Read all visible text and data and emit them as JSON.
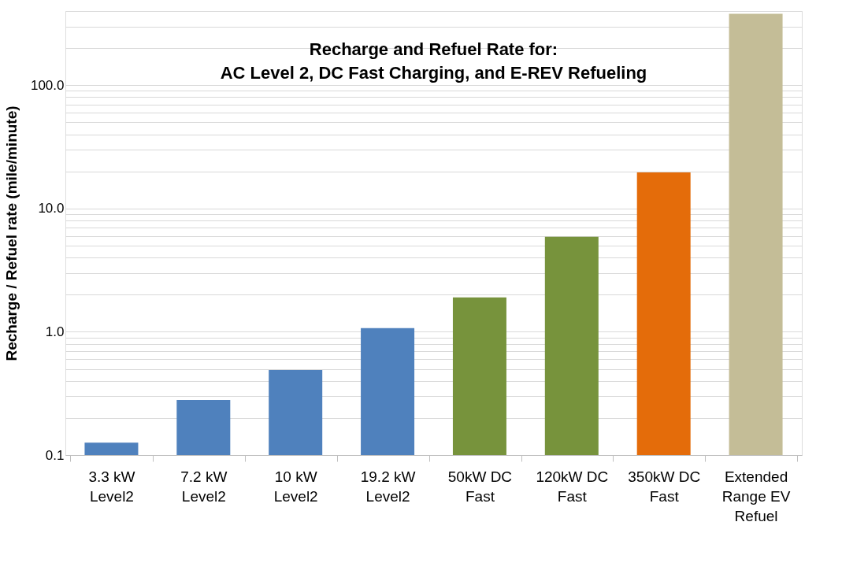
{
  "chart_data": {
    "type": "bar",
    "title": [
      "Recharge and Refuel Rate for:",
      "AC Level 2, DC Fast Charging, and E-REV Refueling"
    ],
    "ylabel": "Recharge / Refuel rate (mile/minute)",
    "categories": [
      "3.3 kW\nLevel2",
      "7.2 kW\nLevel2",
      "10 kW\nLevel2",
      "19.2 kW\nLevel2",
      "50kW DC\nFast",
      "120kW DC\nFast",
      "350kW DC\nFast",
      "Extended\nRange EV\nRefuel"
    ],
    "values": [
      0.126,
      0.28,
      0.49,
      1.07,
      1.9,
      5.9,
      19.6,
      380
    ],
    "colors": [
      "#4f81bd",
      "#4f81bd",
      "#4f81bd",
      "#4f81bd",
      "#77933c",
      "#77933c",
      "#e46c0a",
      "#c4bd97"
    ],
    "log": true,
    "ylim": [
      0.1,
      400
    ],
    "yticks": [
      {
        "value": 0.1,
        "label": "0.1"
      },
      {
        "value": 0.2,
        "label": null
      },
      {
        "value": 0.3,
        "label": null
      },
      {
        "value": 0.4,
        "label": null
      },
      {
        "value": 0.5,
        "label": null
      },
      {
        "value": 0.6,
        "label": null
      },
      {
        "value": 0.7,
        "label": null
      },
      {
        "value": 0.8,
        "label": null
      },
      {
        "value": 0.9,
        "label": null
      },
      {
        "value": 1,
        "label": "1.0"
      },
      {
        "value": 2,
        "label": null
      },
      {
        "value": 3,
        "label": null
      },
      {
        "value": 4,
        "label": null
      },
      {
        "value": 5,
        "label": null
      },
      {
        "value": 6,
        "label": null
      },
      {
        "value": 7,
        "label": null
      },
      {
        "value": 8,
        "label": null
      },
      {
        "value": 9,
        "label": null
      },
      {
        "value": 10,
        "label": "10.0"
      },
      {
        "value": 20,
        "label": null
      },
      {
        "value": 30,
        "label": null
      },
      {
        "value": 40,
        "label": null
      },
      {
        "value": 50,
        "label": null
      },
      {
        "value": 60,
        "label": null
      },
      {
        "value": 70,
        "label": null
      },
      {
        "value": 80,
        "label": null
      },
      {
        "value": 90,
        "label": null
      },
      {
        "value": 100,
        "label": "100.0"
      },
      {
        "value": 200,
        "label": null
      },
      {
        "value": 300,
        "label": null
      },
      {
        "value": 400,
        "label": null
      }
    ],
    "grid": "y",
    "legend": false
  }
}
